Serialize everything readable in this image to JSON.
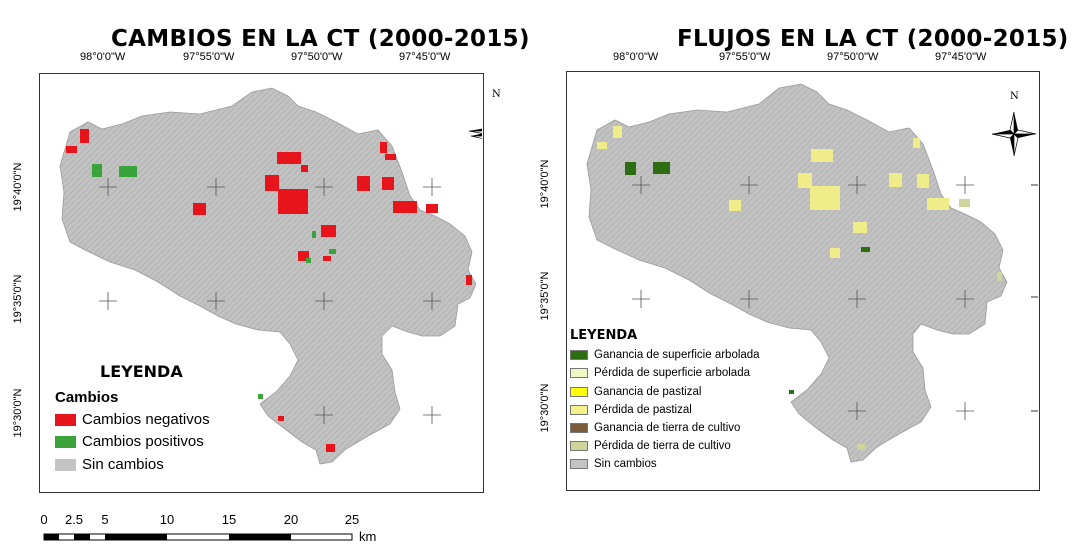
{
  "maps": {
    "left": {
      "title": "CAMBIOS EN LA CT (2000-2015)",
      "lon_ticks": [
        "98°0'0\"W",
        "97°55'0\"W",
        "97°50'0\"W",
        "97°45'0\"W"
      ],
      "lat_ticks": [
        "19°40'0\"N",
        "19°35'0\"N",
        "19°30'0\"N"
      ],
      "north": "N",
      "legend": {
        "heading": "LEYENDA",
        "subheading": "Cambios",
        "items": [
          {
            "label": "Cambios negativos",
            "color": "#e8141b"
          },
          {
            "label": "Cambios positivos",
            "color": "#3aa33a"
          },
          {
            "label": "Sin cambios",
            "color": "#c4c4c4"
          }
        ]
      }
    },
    "right": {
      "title": "FLUJOS EN LA CT (2000-2015)",
      "lon_ticks": [
        "98°0'0\"W",
        "97°55'0\"W",
        "97°50'0\"W",
        "97°45'0\"W"
      ],
      "lat_ticks": [
        "19°40'0\"N",
        "19°35'0\"N",
        "19°30'0\"N"
      ],
      "north": "N",
      "legend": {
        "heading": "LEYENDA",
        "items": [
          {
            "label": "Ganancia de superficie arbolada",
            "color": "#2d6e12"
          },
          {
            "label": "Pérdida de superficie arbolada",
            "color": "#eef7c4"
          },
          {
            "label": "Ganancia de pastizal",
            "color": "#ffff00"
          },
          {
            "label": "Pérdida de pastizal",
            "color": "#f4f08a"
          },
          {
            "label": "Ganancia de tierra de cultivo",
            "color": "#7a5c3a"
          },
          {
            "label": "Pérdida de tierra de cultivo",
            "color": "#cfd49a"
          },
          {
            "label": "Sin cambios",
            "color": "#c4c4c4"
          }
        ]
      }
    }
  },
  "scale_bar": {
    "labels": [
      "0",
      "2.5",
      "5",
      "10",
      "15",
      "20",
      "25"
    ],
    "unit": "km"
  }
}
